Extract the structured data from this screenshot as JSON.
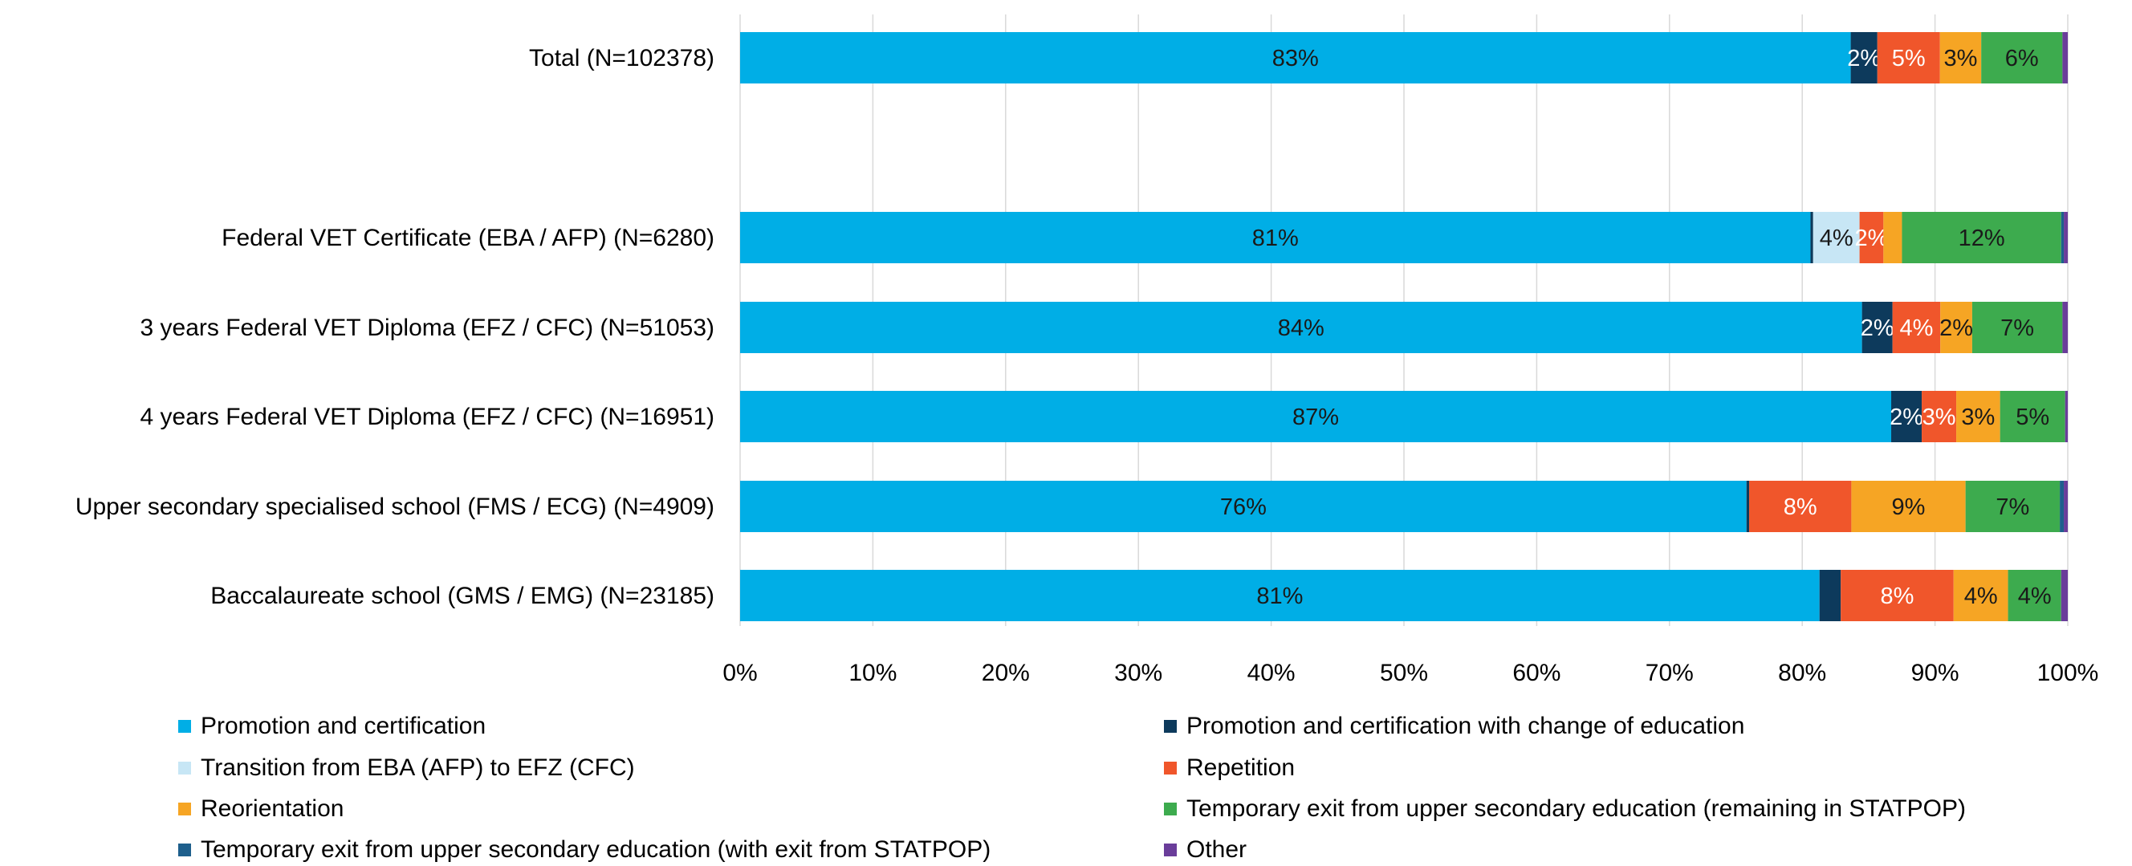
{
  "chart_data": {
    "type": "bar",
    "orientation": "horizontal",
    "stacked": "percent",
    "xlim": [
      0,
      100
    ],
    "x_ticks": [
      "0%",
      "10%",
      "20%",
      "30%",
      "40%",
      "50%",
      "60%",
      "70%",
      "80%",
      "90%",
      "100%"
    ],
    "grid": "vertical",
    "legend_position": "bottom",
    "categories": [
      "Total (N=102378)",
      "Federal VET Certificate (EBA / AFP) (N=6280)",
      "3 years Federal VET Diploma (EFZ / CFC) (N=51053)",
      "4 years Federal VET Diploma (EFZ / CFC) (N=16951)",
      "Upper secondary specialised school (FMS / ECG) (N=4909)",
      "Baccalaureate school (GMS / EMG) (N=23185)"
    ],
    "series": [
      {
        "name": "Promotion and certification",
        "color": "#00aee6",
        "label_color": "#1a1a1a",
        "values": [
          83.4,
          80.7,
          84.5,
          86.7,
          75.8,
          81.3
        ],
        "labels": [
          "83%",
          "81%",
          "84%",
          "87%",
          "76%",
          "81%"
        ]
      },
      {
        "name": "Promotion and certification with change of education",
        "color": "#0d3a5c",
        "label_color": "#ffffff",
        "values": [
          2.0,
          0.2,
          2.3,
          2.3,
          0.2,
          1.6
        ],
        "labels": [
          "2%",
          "",
          "2%",
          "2%",
          "",
          ""
        ]
      },
      {
        "name": "Transition from EBA (AFP)  to EFZ (CFC)",
        "color": "#c7e6f5",
        "label_color": "#1a1a1a",
        "values": [
          0,
          3.5,
          0,
          0,
          0,
          0
        ],
        "labels": [
          "",
          "4%",
          "",
          "",
          "",
          ""
        ]
      },
      {
        "name": "Repetition",
        "color": "#f0562b",
        "label_color": "#ffffff",
        "values": [
          4.7,
          1.8,
          3.6,
          2.6,
          7.7,
          8.5
        ],
        "labels": [
          "5%",
          "2%",
          "4%",
          "3%",
          "8%",
          "8%"
        ]
      },
      {
        "name": "Reorientation",
        "color": "#f6a524",
        "label_color": "#1a1a1a",
        "values": [
          3.1,
          1.4,
          2.4,
          3.3,
          8.6,
          4.1
        ],
        "labels": [
          "3%",
          "",
          "2%",
          "3%",
          "9%",
          "4%"
        ]
      },
      {
        "name": "Temporary exit from upper secondary education (remaining in STATPOP)",
        "color": "#3dab4e",
        "label_color": "#1a1a1a",
        "values": [
          6.1,
          12.0,
          6.8,
          4.9,
          7.1,
          4.0
        ],
        "labels": [
          "6%",
          "12%",
          "7%",
          "5%",
          "7%",
          "4%"
        ]
      },
      {
        "name": "Temporary exit from upper secondary education (with exit from STATPOP)",
        "color": "#1e5f8c",
        "label_color": "#ffffff",
        "values": [
          0,
          0.2,
          0,
          0,
          0.3,
          0
        ],
        "labels": [
          "",
          "",
          "",
          "",
          "",
          ""
        ]
      },
      {
        "name": "Other",
        "color": "#6a3d9a",
        "label_color": "#ffffff",
        "values": [
          0.4,
          0.3,
          0.4,
          0.2,
          0.3,
          0.5
        ],
        "labels": [
          "",
          "",
          "",
          "",
          "",
          ""
        ]
      }
    ]
  }
}
